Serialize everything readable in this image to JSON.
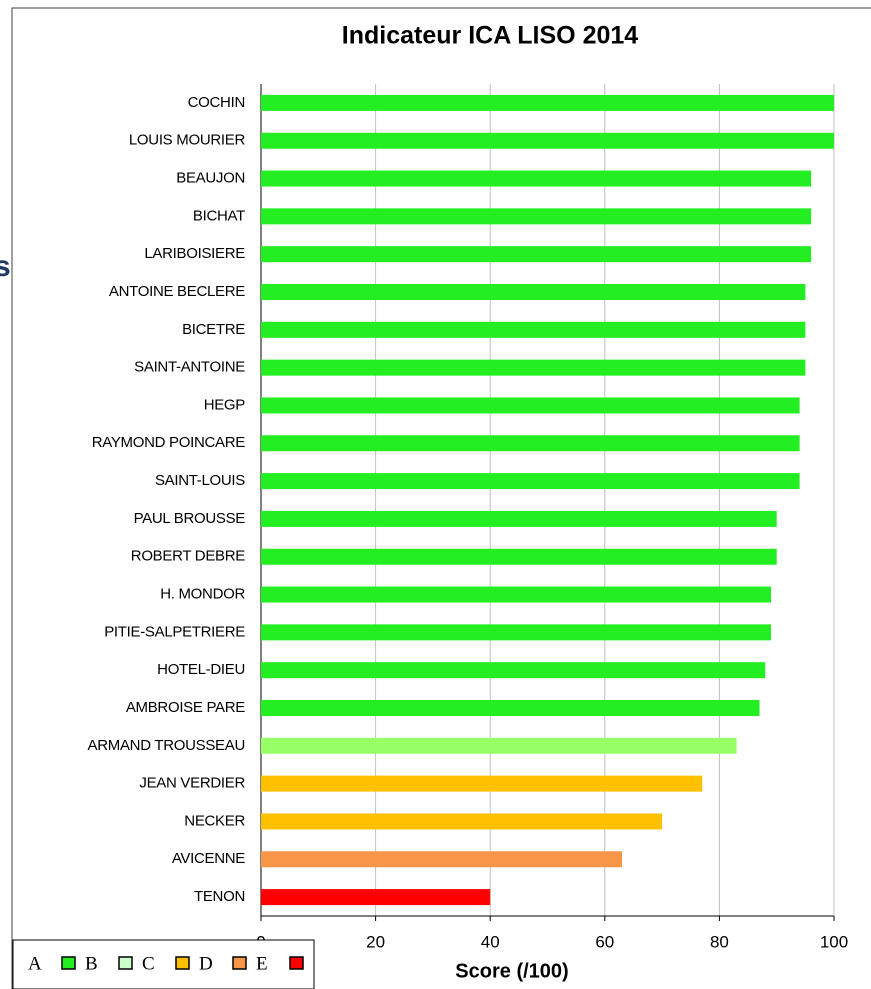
{
  "chart_data": {
    "type": "hbar",
    "title": "Indicateur ICA LISO 2014",
    "xlabel": "Score (/100)",
    "side_text": "s",
    "categories": [
      "COCHIN",
      "LOUIS MOURIER",
      "BEAUJON",
      "BICHAT",
      "LARIBOISIERE",
      "ANTOINE BECLERE",
      "BICETRE",
      "SAINT-ANTOINE",
      "HEGP",
      "RAYMOND POINCARE",
      "SAINT-LOUIS",
      "PAUL BROUSSE",
      "ROBERT DEBRE",
      "H. MONDOR",
      "PITIE-SALPETRIERE",
      "HOTEL-DIEU",
      "AMBROISE PARE",
      "ARMAND TROUSSEAU",
      "JEAN VERDIER",
      "NECKER",
      "AVICENNE",
      "TENON"
    ],
    "values": [
      100,
      100,
      96,
      96,
      96,
      95,
      95,
      95,
      94,
      94,
      94,
      90,
      90,
      89,
      89,
      88,
      87,
      83,
      77,
      70,
      63,
      40
    ],
    "colors": [
      "#22ee22",
      "#22ee22",
      "#22ee22",
      "#22ee22",
      "#22ee22",
      "#22ee22",
      "#22ee22",
      "#22ee22",
      "#22ee22",
      "#22ee22",
      "#22ee22",
      "#22ee22",
      "#22ee22",
      "#22ee22",
      "#22ee22",
      "#22ee22",
      "#22ee22",
      "#99ff66",
      "#ffc000",
      "#ffc000",
      "#f79646",
      "#ff0000"
    ],
    "xlim": [
      0,
      100
    ],
    "xticks": [
      0,
      20,
      40,
      60,
      80,
      100
    ],
    "grid": true,
    "legend": [
      {
        "label": "A",
        "color": "#22ee22"
      },
      {
        "label": "B",
        "color": "#ccffcc"
      },
      {
        "label": "C",
        "color": "#ffc000"
      },
      {
        "label": "D",
        "color": "#f79646"
      },
      {
        "label": "E",
        "color": "#ff0000"
      }
    ]
  }
}
